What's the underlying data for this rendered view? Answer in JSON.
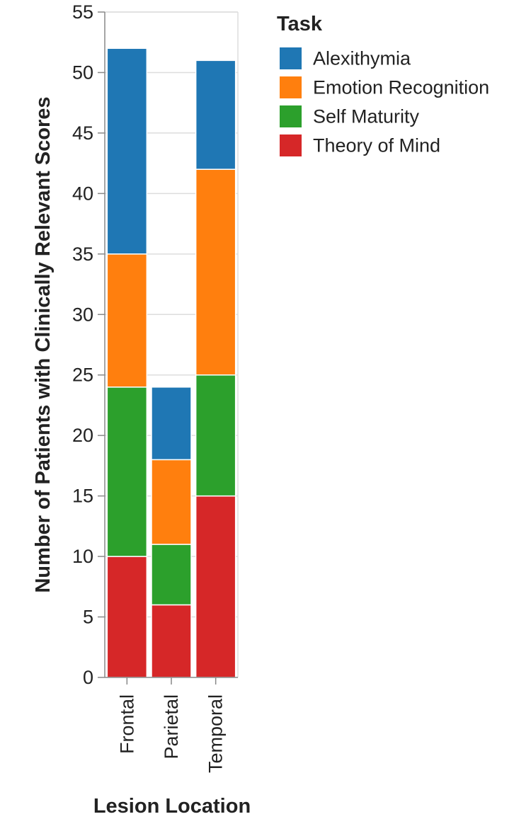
{
  "chart_data": {
    "type": "bar",
    "stacked": true,
    "categories": [
      "Frontal",
      "Parietal",
      "Temporal"
    ],
    "series": [
      {
        "name": "Theory of Mind",
        "values": [
          10,
          6,
          15
        ],
        "color": "#d62728"
      },
      {
        "name": "Self Maturity",
        "values": [
          14,
          5,
          10
        ],
        "color": "#2ca02c"
      },
      {
        "name": "Emotion Recognition",
        "values": [
          11,
          7,
          17
        ],
        "color": "#ff7f0e"
      },
      {
        "name": "Alexithymia",
        "values": [
          17,
          6,
          9
        ],
        "color": "#1f77b4"
      }
    ],
    "legend_order": [
      "Alexithymia",
      "Emotion Recognition",
      "Self Maturity",
      "Theory of Mind"
    ],
    "legend_title": "Task",
    "legend_position": "top-right",
    "xlabel": "Lesion Location",
    "ylabel": "Number of Patients with Clinically Relevant Scores",
    "ylim": [
      0,
      55
    ],
    "yticks": [
      0,
      5,
      10,
      15,
      20,
      25,
      30,
      35,
      40,
      45,
      50,
      55
    ],
    "grid": true,
    "x_tick_rotation": "vertical"
  }
}
